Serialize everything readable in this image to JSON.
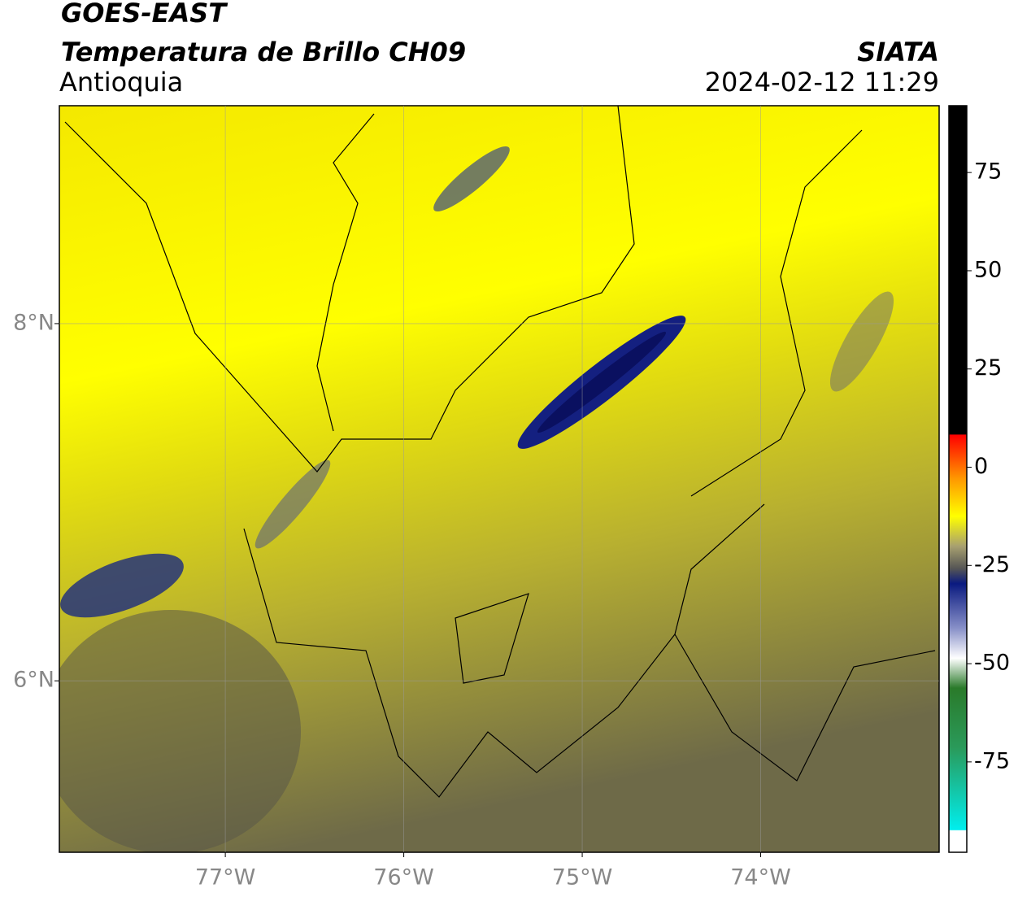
{
  "header": {
    "title": "GOES-EAST",
    "subtitle": "Temperatura de Brillo CH09",
    "region": "Antioquia",
    "source": "SIATA",
    "datetime": "2024-02-12 11:29"
  },
  "map": {
    "xlim": [
      -77.93,
      -73.0
    ],
    "ylim": [
      5.04,
      9.22
    ],
    "xticks": [
      {
        "value": -77,
        "label": "77°W"
      },
      {
        "value": -76,
        "label": "76°W"
      },
      {
        "value": -75,
        "label": "75°W"
      },
      {
        "value": -74,
        "label": "74°W"
      }
    ],
    "yticks": [
      {
        "value": 8,
        "label": "8°N"
      },
      {
        "value": 6,
        "label": "6°N"
      }
    ],
    "grid": true
  },
  "colorbar": {
    "lim": [
      -98,
      92
    ],
    "ticks": [
      75,
      50,
      25,
      0,
      -25,
      -50,
      -75
    ]
  }
}
